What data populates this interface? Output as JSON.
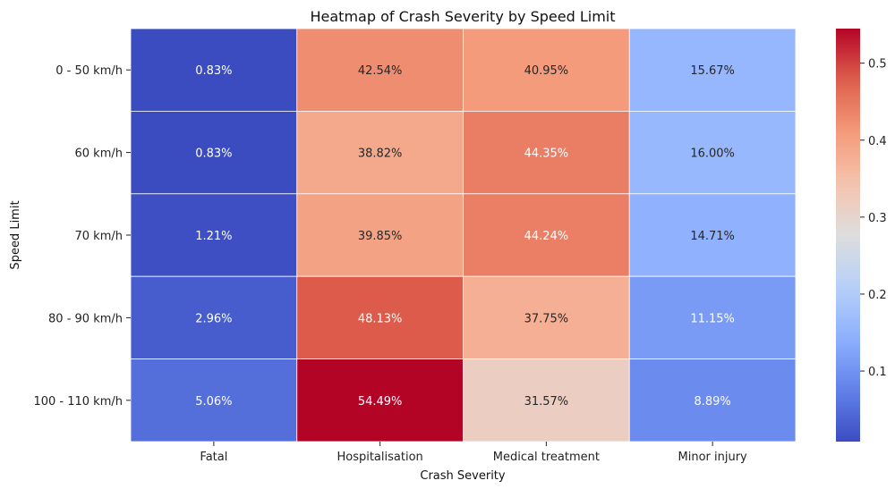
{
  "chart_data": {
    "type": "heatmap",
    "title": "Heatmap of Crash Severity by Speed Limit",
    "xlabel": "Crash Severity",
    "ylabel": "Speed Limit",
    "x_categories": [
      "Fatal",
      "Hospitalisation",
      "Medical treatment",
      "Minor injury"
    ],
    "y_categories": [
      "0 - 50 km/h",
      "60 km/h",
      "70 km/h",
      "80 - 90 km/h",
      "100 - 110 km/h"
    ],
    "values": [
      [
        0.0083,
        0.4254,
        0.4095,
        0.1567
      ],
      [
        0.0083,
        0.3882,
        0.4435,
        0.16
      ],
      [
        0.0121,
        0.3985,
        0.4424,
        0.1471
      ],
      [
        0.0296,
        0.4813,
        0.3775,
        0.1115
      ],
      [
        0.0506,
        0.5449,
        0.3157,
        0.0889
      ]
    ],
    "labels": [
      [
        "0.83%",
        "42.54%",
        "40.95%",
        "15.67%"
      ],
      [
        "0.83%",
        "38.82%",
        "44.35%",
        "16.00%"
      ],
      [
        "1.21%",
        "39.85%",
        "44.24%",
        "14.71%"
      ],
      [
        "2.96%",
        "48.13%",
        "37.75%",
        "11.15%"
      ],
      [
        "5.06%",
        "54.49%",
        "31.57%",
        "8.89%"
      ]
    ],
    "colormap": "coolwarm",
    "vmin": 0.0083,
    "vmax": 0.5449,
    "colorbar_ticks": [
      0.1,
      0.2,
      0.3,
      0.4,
      0.5
    ],
    "colorbar_tick_labels": [
      "0.1",
      "0.2",
      "0.3",
      "0.4",
      "0.5"
    ],
    "cell_border_color": "#ffffff"
  }
}
